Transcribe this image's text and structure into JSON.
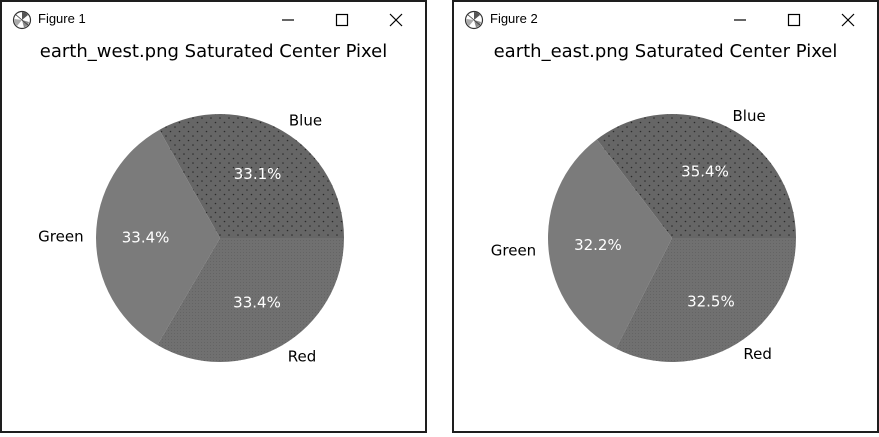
{
  "windows": [
    {
      "title": "Figure 1"
    },
    {
      "title": "Figure 2"
    }
  ],
  "colors": {
    "blue_slice": "#666666",
    "green_slice": "#7b7b7b",
    "red_slice": "#707070",
    "pct_text": "#ffffff",
    "border": "#1e1e1e"
  },
  "chart_data": [
    {
      "type": "pie",
      "title": "earth_west.png Saturated Center Pixel",
      "labels": [
        "Blue",
        "Green",
        "Red"
      ],
      "values": [
        33.1,
        33.4,
        33.4
      ],
      "pct_labels": [
        "33.1%",
        "33.4%",
        "33.4%"
      ],
      "patterns": [
        "dots",
        "none",
        "fine-dots"
      ],
      "startangle": 0
    },
    {
      "type": "pie",
      "title": "earth_east.png Saturated Center Pixel",
      "labels": [
        "Blue",
        "Green",
        "Red"
      ],
      "values": [
        35.4,
        32.2,
        32.5
      ],
      "pct_labels": [
        "35.4%",
        "32.2%",
        "32.5%"
      ],
      "patterns": [
        "dots",
        "none",
        "fine-dots"
      ],
      "startangle": 0
    }
  ]
}
